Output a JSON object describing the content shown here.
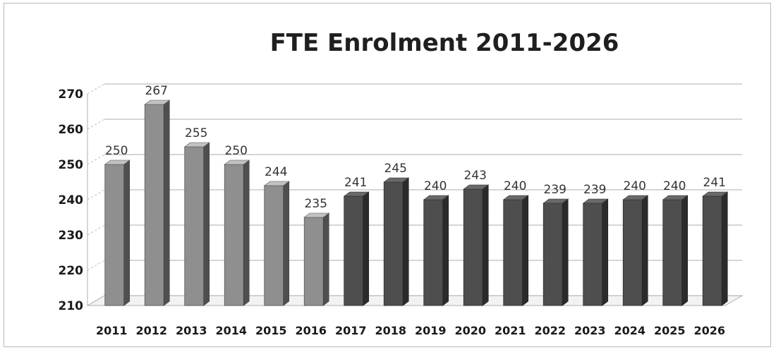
{
  "chart_data": {
    "type": "bar",
    "title": "FTE Enrolment 2011-2026",
    "categories": [
      "2011",
      "2012",
      "2013",
      "2014",
      "2015",
      "2016",
      "2017",
      "2018",
      "2019",
      "2020",
      "2021",
      "2022",
      "2023",
      "2024",
      "2025",
      "2026"
    ],
    "series": [
      {
        "values": [
          250,
          267,
          255,
          250,
          244,
          235,
          241,
          245,
          240,
          243,
          240,
          239,
          239,
          240,
          240,
          241
        ]
      }
    ],
    "ylim": [
      210,
      270
    ],
    "yticks": [
      210,
      220,
      230,
      240,
      250,
      260,
      270
    ],
    "grid": true,
    "three_d": true,
    "colors": {
      "bar_light": "#8f8f8f",
      "bar_dark": "#4e4e4e",
      "grid": "#bdbdbd"
    },
    "bar_shades": [
      "light",
      "light",
      "light",
      "light",
      "light",
      "light",
      "dark",
      "dark",
      "dark",
      "dark",
      "dark",
      "dark",
      "dark",
      "dark",
      "dark",
      "dark"
    ]
  }
}
